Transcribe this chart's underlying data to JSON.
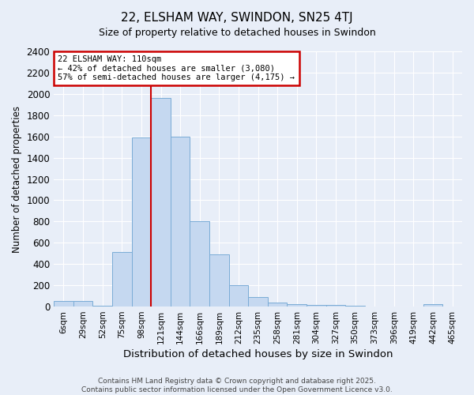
{
  "title": "22, ELSHAM WAY, SWINDON, SN25 4TJ",
  "subtitle": "Size of property relative to detached houses in Swindon",
  "xlabel": "Distribution of detached houses by size in Swindon",
  "ylabel": "Number of detached properties",
  "bar_labels": [
    "6sqm",
    "29sqm",
    "52sqm",
    "75sqm",
    "98sqm",
    "121sqm",
    "144sqm",
    "166sqm",
    "189sqm",
    "212sqm",
    "235sqm",
    "258sqm",
    "281sqm",
    "304sqm",
    "327sqm",
    "350sqm",
    "373sqm",
    "396sqm",
    "419sqm",
    "442sqm",
    "465sqm"
  ],
  "bar_values": [
    55,
    55,
    5,
    510,
    1590,
    1960,
    1600,
    800,
    490,
    200,
    90,
    40,
    25,
    15,
    15,
    5,
    3,
    3,
    3,
    20,
    3
  ],
  "bar_color": "#c5d8f0",
  "bar_edgecolor": "#7aacd6",
  "vline_color": "#cc0000",
  "annotation_text": "22 ELSHAM WAY: 110sqm\n← 42% of detached houses are smaller (3,080)\n57% of semi-detached houses are larger (4,175) →",
  "annotation_box_color": "#cc0000",
  "ylim": [
    0,
    2400
  ],
  "yticks": [
    0,
    200,
    400,
    600,
    800,
    1000,
    1200,
    1400,
    1600,
    1800,
    2000,
    2200,
    2400
  ],
  "footer_line1": "Contains HM Land Registry data © Crown copyright and database right 2025.",
  "footer_line2": "Contains public sector information licensed under the Open Government Licence v3.0.",
  "bg_color": "#e8eef8",
  "plot_bg_color": "#e8eef8",
  "grid_color": "#ffffff",
  "title_fontsize": 11,
  "subtitle_fontsize": 9
}
